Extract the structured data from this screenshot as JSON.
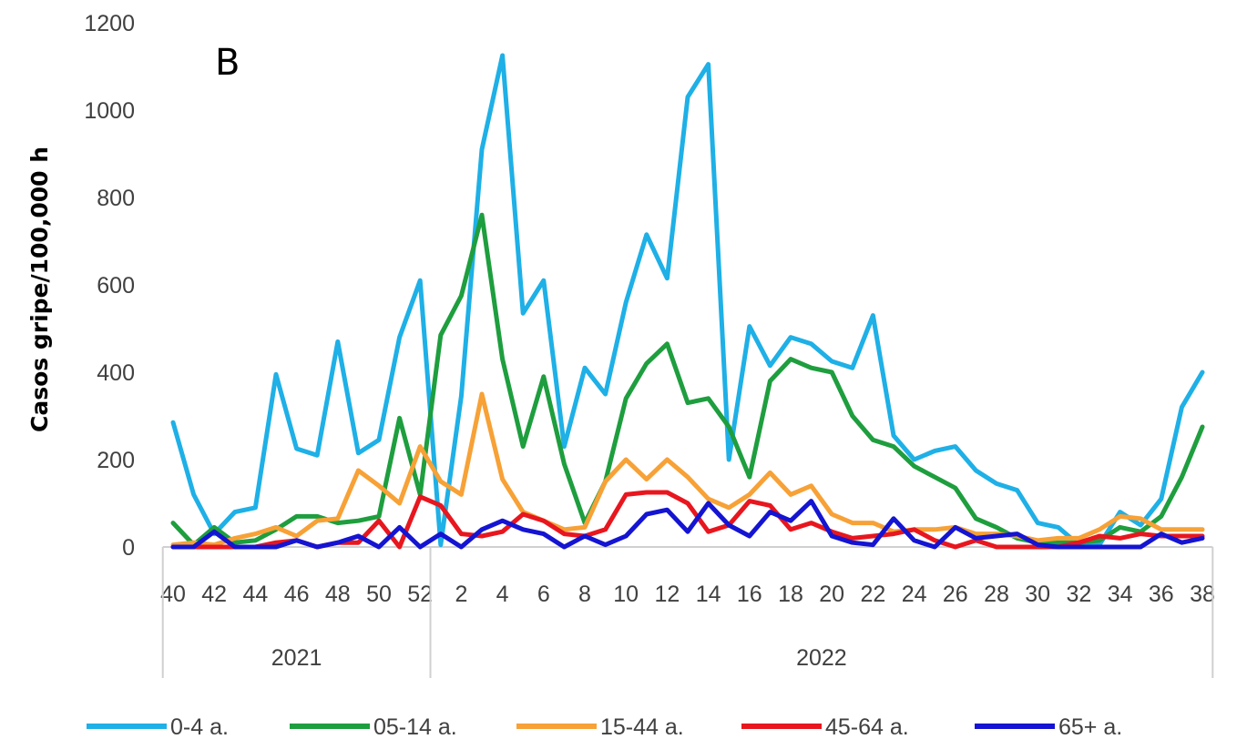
{
  "chart_data": {
    "type": "line",
    "panel_label": "B",
    "ylabel": "Casos gripe/100,000 h",
    "ylim": [
      0,
      1200
    ],
    "y_ticks": [
      0,
      200,
      400,
      600,
      800,
      1000,
      1200
    ],
    "x": [
      40,
      41,
      42,
      43,
      44,
      45,
      46,
      47,
      48,
      49,
      50,
      51,
      52,
      1,
      2,
      3,
      4,
      5,
      6,
      7,
      8,
      9,
      10,
      11,
      12,
      13,
      14,
      15,
      16,
      17,
      18,
      19,
      20,
      21,
      22,
      23,
      24,
      25,
      26,
      27,
      28,
      29,
      30,
      31,
      32,
      33,
      34,
      35,
      36,
      37,
      38
    ],
    "x_tick_labels": [
      "40",
      "42",
      "44",
      "46",
      "48",
      "50",
      "52",
      "2",
      "4",
      "6",
      "8",
      "10",
      "12",
      "14",
      "16",
      "18",
      "20",
      "22",
      "24",
      "26",
      "28",
      "30",
      "32",
      "34",
      "36",
      "38"
    ],
    "years": [
      {
        "label": "2021"
      },
      {
        "label": "2022"
      }
    ],
    "grid": false,
    "legend_position": "bottom",
    "series": [
      {
        "name": "0-4 a.",
        "color": "#1EB0E6",
        "values": [
          285,
          120,
          30,
          80,
          90,
          395,
          225,
          210,
          470,
          215,
          245,
          480,
          610,
          5,
          345,
          910,
          1125,
          535,
          610,
          230,
          410,
          350,
          560,
          715,
          615,
          1030,
          1105,
          200,
          505,
          415,
          480,
          465,
          425,
          410,
          530,
          255,
          200,
          220,
          230,
          175,
          145,
          130,
          55,
          45,
          5,
          5,
          80,
          50,
          110,
          320,
          400
        ]
      },
      {
        "name": "05-14 a.",
        "color": "#1E9E3E",
        "values": [
          55,
          5,
          45,
          10,
          15,
          40,
          70,
          70,
          55,
          60,
          70,
          295,
          120,
          485,
          575,
          760,
          430,
          230,
          390,
          190,
          55,
          150,
          340,
          420,
          465,
          330,
          340,
          275,
          160,
          380,
          430,
          410,
          400,
          300,
          245,
          230,
          185,
          160,
          135,
          65,
          45,
          20,
          10,
          10,
          10,
          15,
          45,
          35,
          70,
          160,
          275
        ]
      },
      {
        "name": "15-44 a.",
        "color": "#F7A136",
        "values": [
          5,
          10,
          5,
          20,
          30,
          45,
          25,
          60,
          65,
          175,
          140,
          100,
          230,
          150,
          120,
          350,
          155,
          80,
          60,
          40,
          45,
          150,
          200,
          155,
          200,
          160,
          110,
          90,
          120,
          170,
          120,
          140,
          75,
          55,
          55,
          35,
          40,
          40,
          45,
          30,
          30,
          25,
          15,
          20,
          20,
          40,
          70,
          65,
          40,
          40,
          40
        ]
      },
      {
        "name": "45-64 a.",
        "color": "#E8161E",
        "values": [
          0,
          0,
          0,
          0,
          0,
          10,
          15,
          0,
          10,
          10,
          60,
          0,
          115,
          95,
          30,
          25,
          35,
          75,
          60,
          30,
          25,
          40,
          120,
          125,
          125,
          100,
          35,
          50,
          105,
          95,
          40,
          55,
          35,
          20,
          25,
          30,
          40,
          15,
          0,
          15,
          0,
          0,
          0,
          0,
          10,
          25,
          20,
          30,
          25,
          25,
          25
        ]
      },
      {
        "name": "65+ a.",
        "color": "#1414D2",
        "values": [
          0,
          0,
          35,
          0,
          0,
          0,
          15,
          0,
          10,
          25,
          0,
          45,
          0,
          30,
          0,
          40,
          60,
          40,
          30,
          0,
          25,
          5,
          25,
          75,
          85,
          35,
          100,
          50,
          25,
          80,
          60,
          105,
          25,
          10,
          5,
          65,
          15,
          0,
          45,
          20,
          25,
          30,
          5,
          0,
          0,
          0,
          0,
          0,
          30,
          10,
          20
        ]
      }
    ]
  }
}
